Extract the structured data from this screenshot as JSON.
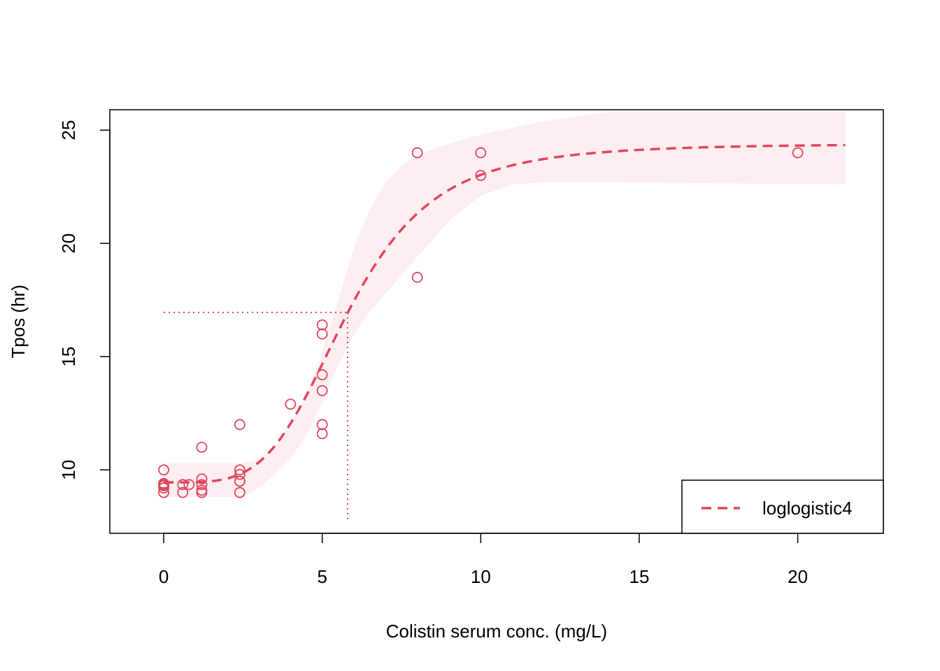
{
  "chart_data": {
    "type": "scatter",
    "title": "",
    "xlabel": "Colistin serum conc. (mg/L)",
    "ylabel": "Tpos (hr)",
    "xlim": [
      -1.7,
      22.7
    ],
    "ylim": [
      7.2,
      25.9
    ],
    "grid": false,
    "legend": {
      "position": "bottom-right",
      "entries": [
        "loglogistic4"
      ]
    },
    "x_ticks": [
      0,
      5,
      10,
      15,
      20
    ],
    "y_ticks": [
      10,
      15,
      20,
      25
    ],
    "colors": {
      "points": "#e0475f",
      "curve": "#e0475f",
      "band": "#fdeef1",
      "reference": "#e0475f"
    },
    "points": [
      {
        "x": 0,
        "y": 10.0
      },
      {
        "x": 0,
        "y": 9.4
      },
      {
        "x": 0,
        "y": 9.35
      },
      {
        "x": 0,
        "y": 9.3
      },
      {
        "x": 0,
        "y": 9.2
      },
      {
        "x": 0,
        "y": 9.0
      },
      {
        "x": 0.6,
        "y": 9.35
      },
      {
        "x": 0.6,
        "y": 9.0
      },
      {
        "x": 0.8,
        "y": 9.35
      },
      {
        "x": 1.2,
        "y": 11.0
      },
      {
        "x": 1.2,
        "y": 9.6
      },
      {
        "x": 1.2,
        "y": 9.35
      },
      {
        "x": 1.2,
        "y": 9.1
      },
      {
        "x": 1.2,
        "y": 9.0
      },
      {
        "x": 2.4,
        "y": 12.0
      },
      {
        "x": 2.4,
        "y": 10.0
      },
      {
        "x": 2.4,
        "y": 9.8
      },
      {
        "x": 2.4,
        "y": 9.5
      },
      {
        "x": 2.4,
        "y": 9.5
      },
      {
        "x": 2.4,
        "y": 9.0
      },
      {
        "x": 4.0,
        "y": 12.9
      },
      {
        "x": 5,
        "y": 16.4
      },
      {
        "x": 5,
        "y": 16.0
      },
      {
        "x": 5,
        "y": 14.2
      },
      {
        "x": 5,
        "y": 13.5
      },
      {
        "x": 5,
        "y": 12.0
      },
      {
        "x": 5,
        "y": 11.6
      },
      {
        "x": 8,
        "y": 24.0
      },
      {
        "x": 8,
        "y": 18.5
      },
      {
        "x": 10,
        "y": 24.0
      },
      {
        "x": 10,
        "y": 23.0
      },
      {
        "x": 20,
        "y": 24.0
      }
    ],
    "fit": {
      "model": "loglogistic4",
      "lower": 9.45,
      "upper": 24.4,
      "ec50": 5.8,
      "hill": 4.2,
      "x_range": [
        0,
        21.5
      ]
    },
    "confidence_band": [
      {
        "x": 0,
        "lower": 8.8,
        "upper": 10.3
      },
      {
        "x": 1,
        "lower": 8.8,
        "upper": 10.3
      },
      {
        "x": 2,
        "lower": 8.8,
        "upper": 10.3
      },
      {
        "x": 2.5,
        "lower": 8.8,
        "upper": 10.3
      },
      {
        "x": 3,
        "lower": 9.2,
        "upper": 10.5
      },
      {
        "x": 3.5,
        "lower": 9.8,
        "upper": 11.0
      },
      {
        "x": 4,
        "lower": 10.5,
        "upper": 12.0
      },
      {
        "x": 4.5,
        "lower": 11.5,
        "upper": 13.3
      },
      {
        "x": 5,
        "lower": 13.0,
        "upper": 15.2
      },
      {
        "x": 5.5,
        "lower": 14.6,
        "upper": 17.5
      },
      {
        "x": 6,
        "lower": 16.0,
        "upper": 19.8
      },
      {
        "x": 6.5,
        "lower": 17.0,
        "upper": 21.5
      },
      {
        "x": 7,
        "lower": 17.8,
        "upper": 22.7
      },
      {
        "x": 7.5,
        "lower": 18.6,
        "upper": 23.4
      },
      {
        "x": 8,
        "lower": 19.4,
        "upper": 23.9
      },
      {
        "x": 9,
        "lower": 21.0,
        "upper": 24.4
      },
      {
        "x": 10,
        "lower": 22.1,
        "upper": 24.8
      },
      {
        "x": 11,
        "lower": 22.6,
        "upper": 25.1
      },
      {
        "x": 12,
        "lower": 22.7,
        "upper": 25.4
      },
      {
        "x": 14,
        "lower": 22.7,
        "upper": 25.8
      },
      {
        "x": 21.5,
        "lower": 22.6,
        "upper": 25.8
      }
    ],
    "reference_lines": {
      "ed_x": 5.8,
      "ed_y": 16.95,
      "x_from": 0,
      "y_from": 7.8
    }
  }
}
